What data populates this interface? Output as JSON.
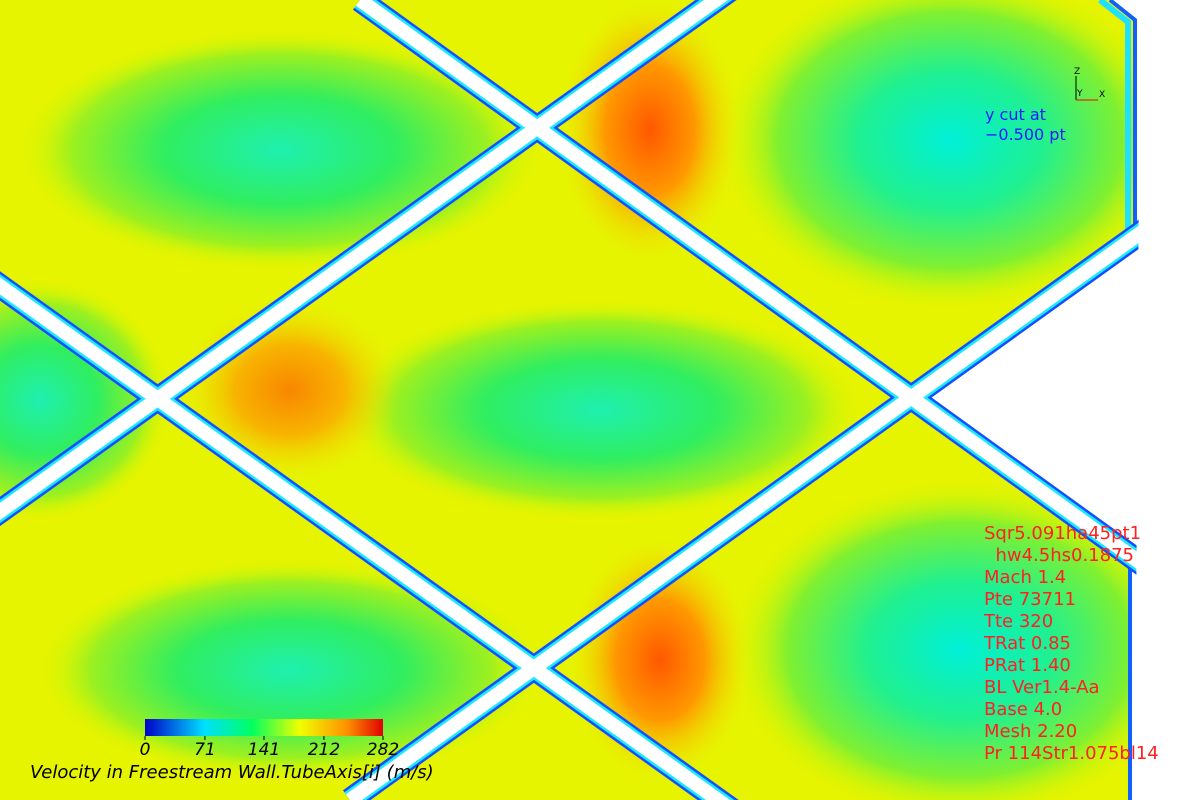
{
  "colorbar": {
    "label": "Velocity in Freestream Wall.TubeAxis[i] (m/s)",
    "range": [
      0,
      282
    ],
    "ticks": [
      0,
      71,
      141,
      212,
      282
    ]
  },
  "cut_label": [
    "y cut at",
    "−0.500 pt"
  ],
  "axes": {
    "z": "Z",
    "y": "Y",
    "x": "X"
  },
  "info_lines": [
    "Sqr5.091ha45pt1",
    "  hw4.5hs0.1875",
    "Mach 1.4",
    "Pte 73711",
    "Tte 320",
    "TRat 0.85",
    "PRat 1.40",
    "BL Ver1.4-Aa",
    "Base 4.0",
    "Mesh 2.20",
    "Pr 114Str1.075bl14"
  ]
}
